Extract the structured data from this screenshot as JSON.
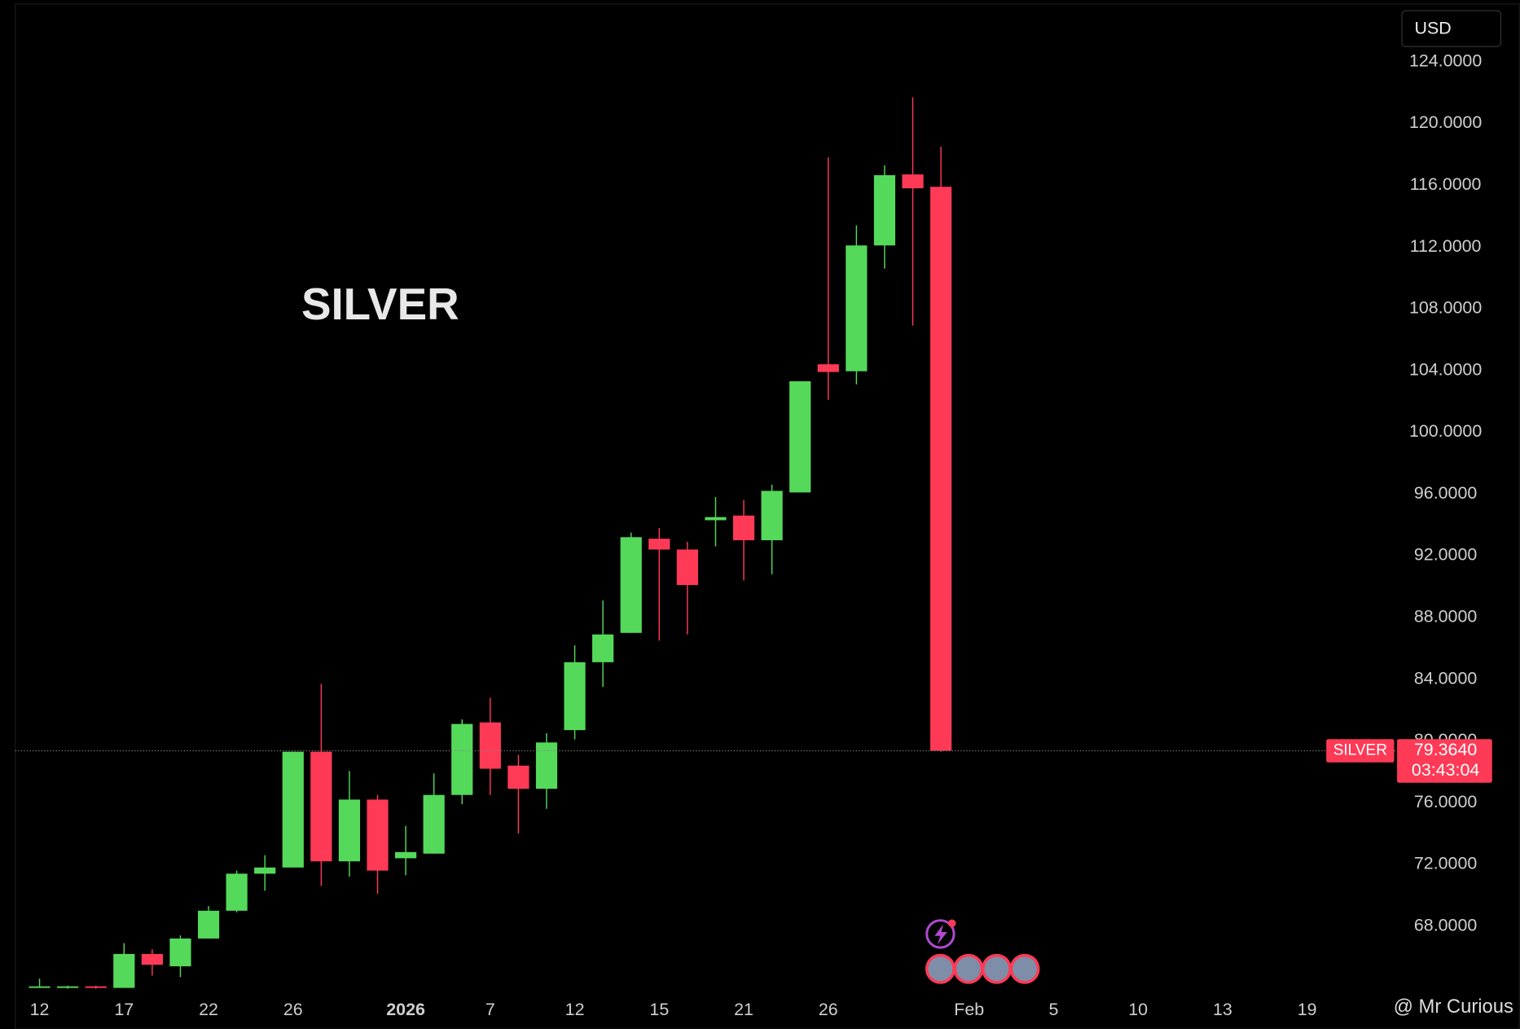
{
  "chart_data": {
    "type": "candlestick",
    "title": "SILVER",
    "currency": "USD",
    "categories": [
      "12",
      null,
      null,
      "17",
      null,
      null,
      "22",
      null,
      null,
      "26",
      null,
      null,
      null,
      "2026",
      null,
      null,
      "7",
      null,
      null,
      "12",
      null,
      null,
      "15",
      null,
      null,
      "21",
      null,
      null,
      "26",
      null,
      null,
      null,
      null,
      "Feb",
      null,
      null,
      "5",
      null,
      null,
      "10",
      null,
      null,
      "13",
      null,
      null,
      "19"
    ],
    "open": [
      64.0,
      64.0,
      64.1,
      64.0,
      66.2,
      65.4,
      67.2,
      69.0,
      71.4,
      71.8,
      79.3,
      72.2,
      76.2,
      72.4,
      72.7,
      76.5,
      81.2,
      78.4,
      76.9,
      80.7,
      85.1,
      87.0,
      93.1,
      92.4,
      94.3,
      94.6,
      93.0,
      96.1,
      104.4,
      103.95,
      112.1,
      116.7,
      115.9,
      null,
      null,
      null,
      null,
      null,
      null,
      null,
      null,
      null,
      null,
      null,
      null,
      null
    ],
    "high": [
      64.6,
      64.15,
      64.15,
      66.9,
      66.5,
      67.4,
      69.3,
      71.6,
      72.6,
      79.3,
      83.7,
      78.05,
      76.5,
      74.5,
      77.9,
      81.4,
      82.8,
      79.1,
      80.5,
      86.2,
      89.1,
      93.5,
      93.8,
      92.9,
      95.8,
      95.6,
      96.6,
      103.3,
      117.8,
      113.4,
      117.3,
      121.7,
      118.5,
      null,
      null,
      null,
      null,
      null,
      null,
      null,
      null,
      null,
      null,
      null,
      null,
      null
    ],
    "low": [
      64.0,
      63.95,
      63.95,
      64.0,
      64.8,
      64.7,
      67.2,
      68.9,
      70.3,
      71.8,
      70.6,
      71.2,
      70.1,
      71.3,
      72.7,
      75.9,
      76.5,
      74.0,
      75.6,
      80.1,
      83.5,
      87.0,
      86.5,
      86.9,
      92.6,
      90.4,
      90.8,
      96.1,
      102.1,
      103.1,
      110.6,
      106.9,
      79.3,
      null,
      null,
      null,
      null,
      null,
      null,
      null,
      null,
      null,
      null,
      null,
      null,
      null
    ],
    "close": [
      64.1,
      64.1,
      64.0,
      66.2,
      65.5,
      67.2,
      69.0,
      71.4,
      71.8,
      79.3,
      72.2,
      76.2,
      71.6,
      72.8,
      76.5,
      81.1,
      78.2,
      76.9,
      79.9,
      85.1,
      86.9,
      93.2,
      92.4,
      90.1,
      94.5,
      93.0,
      96.2,
      103.3,
      103.9,
      112.1,
      116.65,
      115.8,
      79.364,
      null,
      null,
      null,
      null,
      null,
      null,
      null,
      null,
      null,
      null,
      null,
      null,
      null
    ],
    "up_color": "#55d95b",
    "down_color": "#ff3a56",
    "ylim": [
      63.6,
      128.0
    ],
    "yticks": [
      {
        "value": 68,
        "label": "68.0000"
      },
      {
        "value": 72,
        "label": "72.0000"
      },
      {
        "value": 76,
        "label": "76.0000"
      },
      {
        "value": 80,
        "label": "80.0000"
      },
      {
        "value": 84,
        "label": "84.0000"
      },
      {
        "value": 88,
        "label": "88.0000"
      },
      {
        "value": 92,
        "label": "92.0000"
      },
      {
        "value": 96,
        "label": "96.0000"
      },
      {
        "value": 100,
        "label": "100.0000"
      },
      {
        "value": 104,
        "label": "104.0000"
      },
      {
        "value": 108,
        "label": "108.0000"
      },
      {
        "value": 112,
        "label": "112.0000"
      },
      {
        "value": 116,
        "label": "116.0000"
      },
      {
        "value": 120,
        "label": "120.0000"
      },
      {
        "value": 124,
        "label": "124.0000"
      }
    ],
    "last_price": {
      "value": 79.364,
      "label": "79.3640"
    },
    "tag_name": "SILVER",
    "countdown": "03:43:04",
    "watermark": "@ Mr Curious"
  }
}
